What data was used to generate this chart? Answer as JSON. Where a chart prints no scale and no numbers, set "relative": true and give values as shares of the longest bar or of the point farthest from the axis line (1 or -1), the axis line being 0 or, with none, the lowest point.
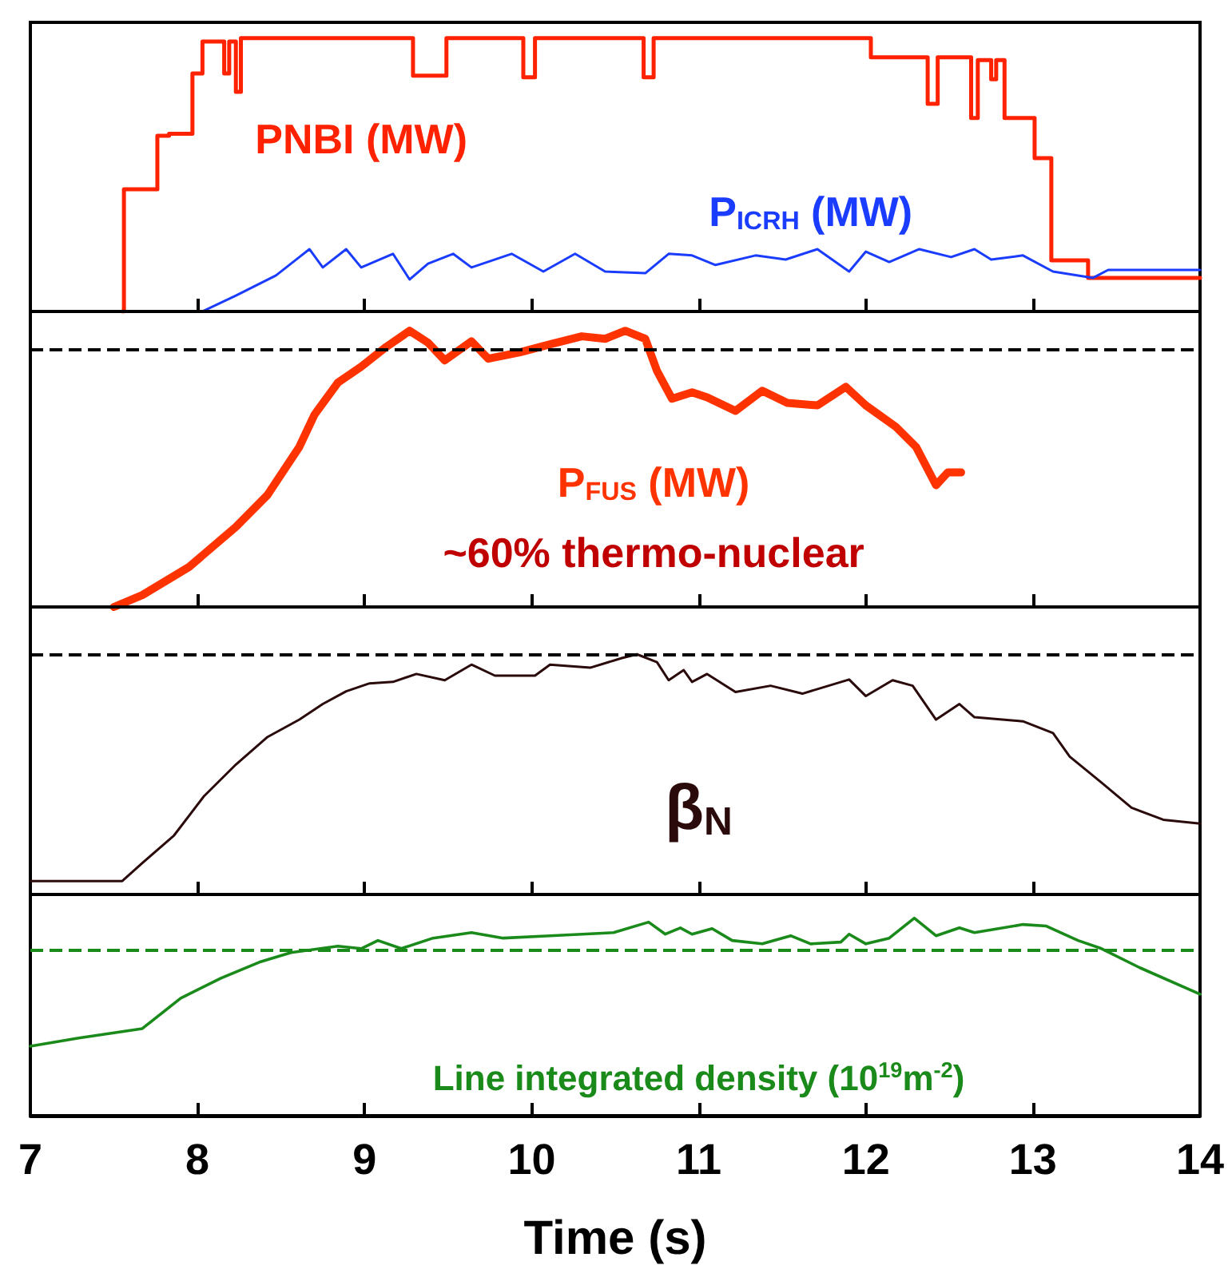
{
  "chart_data": [
    {
      "type": "line",
      "relative": true,
      "xlim": [
        7,
        14
      ],
      "xticks": [
        7,
        8,
        9,
        10,
        11,
        12,
        13,
        14
      ],
      "tick_labels": false,
      "series": [
        {
          "name": "PNBI (MW)",
          "type": "step",
          "color": "#ff2200",
          "x": [
            7.55,
            7.56,
            7.76,
            7.83,
            7.97,
            8.03,
            8.16,
            8.19,
            8.23,
            8.26,
            9.29,
            9.49,
            9.95,
            10.02,
            10.67,
            10.73,
            12.03,
            12.37,
            12.43,
            12.63,
            12.67,
            12.75,
            12.78,
            12.83,
            13.01,
            13.11,
            13.33,
            14.0
          ],
          "values": [
            0,
            0.447,
            0.643,
            0.65,
            0.871,
            0.988,
            0.871,
            0.988,
            0.804,
            1.0,
            0.863,
            1.0,
            0.857,
            1.0,
            0.857,
            1.0,
            0.93,
            0.76,
            0.93,
            0.708,
            0.92,
            0.85,
            0.92,
            0.708,
            0.561,
            0.187,
            0.123,
            0.123
          ]
        },
        {
          "name": "P$_{ICRH}$ (MW)",
          "type": "line",
          "color": "#1a3cff",
          "x": [
            8.03,
            8.23,
            8.47,
            8.61,
            8.67,
            8.75,
            8.89,
            8.98,
            9.17,
            9.27,
            9.38,
            9.53,
            9.64,
            9.88,
            10.07,
            10.26,
            10.44,
            10.68,
            10.82,
            10.96,
            11.1,
            11.34,
            11.52,
            11.71,
            11.9,
            12.0,
            12.14,
            12.32,
            12.51,
            12.65,
            12.75,
            12.94,
            13.12,
            13.36,
            13.45,
            14.0
          ],
          "values": [
            0,
            0.058,
            0.132,
            0.199,
            0.228,
            0.161,
            0.228,
            0.161,
            0.211,
            0.117,
            0.175,
            0.211,
            0.161,
            0.211,
            0.146,
            0.211,
            0.146,
            0.14,
            0.211,
            0.205,
            0.17,
            0.205,
            0.19,
            0.228,
            0.146,
            0.219,
            0.181,
            0.228,
            0.199,
            0.228,
            0.19,
            0.205,
            0.146,
            0.123,
            0.152,
            0.152
          ]
        }
      ]
    },
    {
      "type": "line",
      "relative": true,
      "xlim": [
        7,
        14
      ],
      "xticks": [
        7,
        8,
        9,
        10,
        11,
        12,
        13,
        14
      ],
      "tick_labels": false,
      "annotations": [
        "~60% thermo-nuclear"
      ],
      "ref_lines": [
        {
          "axis": "y",
          "value": 0.933,
          "color": "#000000",
          "line_style": "dashed"
        }
      ],
      "series": [
        {
          "name": "P$_{FUS}$ (MW)",
          "color": "#ff3300",
          "x": [
            7.5,
            7.67,
            7.95,
            8.23,
            8.42,
            8.61,
            8.7,
            8.84,
            8.98,
            9.13,
            9.27,
            9.38,
            9.48,
            9.64,
            9.74,
            9.93,
            10.11,
            10.3,
            10.44,
            10.56,
            10.68,
            10.75,
            10.84,
            10.96,
            11.05,
            11.22,
            11.38,
            11.53,
            11.71,
            11.88,
            12.0,
            12.18,
            12.3,
            12.42,
            12.49,
            12.57
          ],
          "values": [
            0,
            0.043,
            0.145,
            0.29,
            0.406,
            0.58,
            0.696,
            0.812,
            0.87,
            0.942,
            1.0,
            0.957,
            0.893,
            0.962,
            0.899,
            0.922,
            0.951,
            0.98,
            0.971,
            1.0,
            0.971,
            0.855,
            0.754,
            0.777,
            0.759,
            0.71,
            0.783,
            0.739,
            0.73,
            0.797,
            0.73,
            0.652,
            0.58,
            0.441,
            0.487,
            0.487
          ]
        }
      ]
    },
    {
      "type": "line",
      "relative": true,
      "xlim": [
        7,
        14
      ],
      "xticks": [
        7,
        8,
        9,
        10,
        11,
        12,
        13,
        14
      ],
      "tick_labels": false,
      "ref_lines": [
        {
          "axis": "y",
          "value": 1.0,
          "color": "#000000",
          "line_style": "dashed"
        }
      ],
      "series": [
        {
          "name": "β$_{N}$",
          "color": "#2a0a0a",
          "x": [
            7.0,
            7.55,
            7.67,
            7.86,
            8.04,
            8.23,
            8.42,
            8.61,
            8.75,
            8.89,
            9.03,
            9.17,
            9.31,
            9.48,
            9.64,
            9.78,
            10.02,
            10.11,
            10.35,
            10.54,
            10.63,
            10.75,
            10.82,
            10.91,
            10.96,
            11.05,
            11.22,
            11.43,
            11.62,
            11.9,
            12.0,
            12.16,
            12.28,
            12.42,
            12.56,
            12.65,
            12.94,
            13.12,
            13.22,
            13.41,
            13.59,
            13.78,
            14.0
          ],
          "values": [
            0.056,
            0.056,
            0.131,
            0.246,
            0.41,
            0.541,
            0.656,
            0.728,
            0.793,
            0.846,
            0.879,
            0.885,
            0.918,
            0.892,
            0.957,
            0.911,
            0.911,
            0.957,
            0.944,
            0.984,
            1.0,
            0.967,
            0.892,
            0.934,
            0.885,
            0.918,
            0.843,
            0.869,
            0.836,
            0.895,
            0.826,
            0.892,
            0.869,
            0.728,
            0.793,
            0.738,
            0.721,
            0.672,
            0.574,
            0.466,
            0.361,
            0.311,
            0.295
          ]
        }
      ]
    },
    {
      "type": "line",
      "relative": true,
      "xlim": [
        7,
        14
      ],
      "xticks": [
        7,
        8,
        9,
        10,
        11,
        12,
        13,
        14
      ],
      "tick_labels": "x",
      "xlabel": "Time (s)",
      "ref_lines": [
        {
          "axis": "y",
          "value": 0.838,
          "color": "#1a8a1a",
          "line_style": "dashed"
        }
      ],
      "series": [
        {
          "name": "Line integrated density (10$^{19}$m$^{-2}$)",
          "color": "#1a8a1a",
          "x": [
            7.0,
            7.29,
            7.67,
            7.9,
            8.14,
            8.37,
            8.56,
            8.84,
            8.98,
            9.08,
            9.22,
            9.41,
            9.64,
            9.83,
            10.11,
            10.49,
            10.7,
            10.8,
            10.89,
            10.96,
            11.08,
            11.2,
            11.38,
            11.55,
            11.67,
            11.85,
            11.9,
            12.0,
            12.14,
            12.29,
            12.42,
            12.56,
            12.65,
            12.94,
            13.08,
            13.27,
            13.41,
            13.64,
            14.0
          ],
          "values": [
            0.352,
            0.393,
            0.441,
            0.595,
            0.696,
            0.777,
            0.826,
            0.858,
            0.846,
            0.887,
            0.846,
            0.899,
            0.927,
            0.899,
            0.911,
            0.927,
            0.98,
            0.919,
            0.951,
            0.919,
            0.947,
            0.887,
            0.87,
            0.911,
            0.87,
            0.879,
            0.919,
            0.87,
            0.899,
            1.0,
            0.911,
            0.951,
            0.927,
            0.968,
            0.96,
            0.887,
            0.846,
            0.749,
            0.615
          ]
        }
      ]
    }
  ]
}
